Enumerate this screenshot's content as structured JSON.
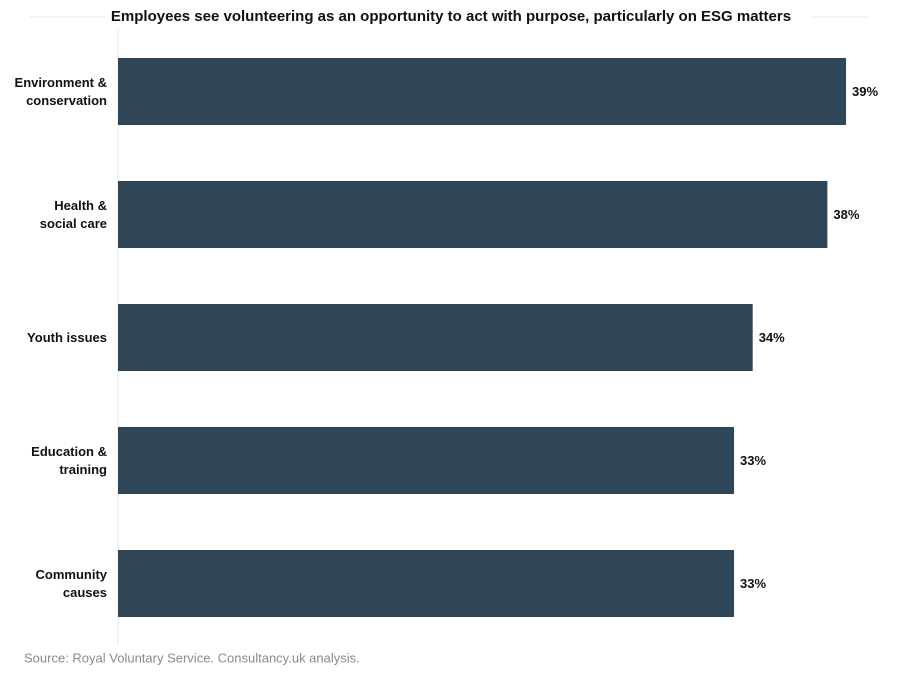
{
  "chart_data": {
    "type": "bar",
    "orientation": "horizontal",
    "title": "Employees see volunteering as an opportunity to act with purpose, particularly on ESG matters",
    "categories": [
      "Environment &\nconservation",
      "Health &\nsocial care",
      "Youth issues",
      "Education &\ntraining",
      "Community\ncauses"
    ],
    "values": [
      39,
      38,
      34,
      33,
      33
    ],
    "value_labels": [
      "39%",
      "38%",
      "34%",
      "33%",
      "33%"
    ],
    "color": "#2f4659",
    "xlim": [
      0,
      40
    ],
    "source": "Source: Royal Voluntary Service. Consultancy.uk analysis."
  }
}
